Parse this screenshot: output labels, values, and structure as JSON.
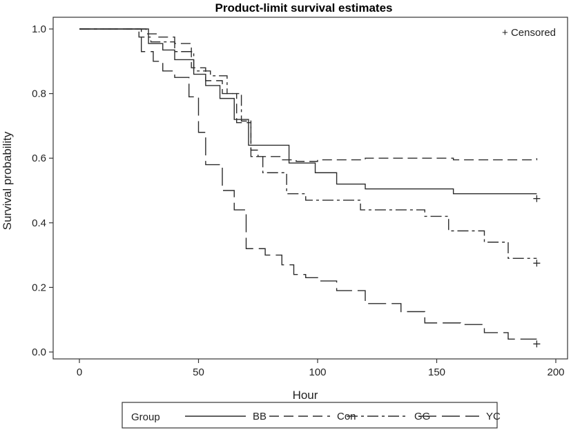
{
  "chart_data": {
    "type": "line",
    "title": "Product-limit survival estimates",
    "xlabel": "Hour",
    "ylabel": "Survival probability",
    "xlim": [
      -10,
      205
    ],
    "ylim": [
      -0.02,
      1.04
    ],
    "xticks": [
      0,
      50,
      100,
      150,
      200
    ],
    "yticks": [
      0.0,
      0.2,
      0.4,
      0.6,
      0.8,
      1.0
    ],
    "xtick_labels": [
      "0",
      "50",
      "100",
      "150",
      "200"
    ],
    "ytick_labels": [
      "0.0",
      "0.2",
      "0.4",
      "0.6",
      "0.8",
      "1.0"
    ],
    "censor_note": "+ Censored",
    "legend": {
      "title": "Group",
      "position": "bottom"
    },
    "series": [
      {
        "name": "BB",
        "dash": "solid",
        "x": [
          0,
          22,
          29,
          35,
          40,
          48,
          53,
          59,
          65,
          71,
          88,
          99,
          108,
          120,
          157,
          192
        ],
        "y": [
          1.0,
          1.0,
          0.955,
          0.935,
          0.905,
          0.86,
          0.825,
          0.785,
          0.72,
          0.64,
          0.585,
          0.555,
          0.52,
          0.505,
          0.49,
          0.49
        ],
        "censored": [
          {
            "x": 192,
            "y": 0.475
          }
        ]
      },
      {
        "name": "Con",
        "dash": "dashed",
        "x": [
          0,
          22,
          28,
          33,
          40,
          47,
          53,
          60,
          66,
          72,
          75,
          85,
          91,
          100,
          120,
          157,
          192
        ],
        "y": [
          1.0,
          1.0,
          0.985,
          0.975,
          0.955,
          0.88,
          0.84,
          0.8,
          0.71,
          0.625,
          0.605,
          0.595,
          0.59,
          0.595,
          0.6,
          0.595,
          0.6
        ],
        "censored": []
      },
      {
        "name": "GG",
        "dash": "dashdot",
        "x": [
          0,
          22,
          25,
          30,
          40,
          48,
          55,
          62,
          68,
          72,
          77,
          87,
          95,
          118,
          145,
          155,
          170,
          180,
          192
        ],
        "y": [
          1.0,
          1.0,
          0.975,
          0.96,
          0.93,
          0.87,
          0.855,
          0.8,
          0.715,
          0.605,
          0.555,
          0.49,
          0.47,
          0.44,
          0.42,
          0.375,
          0.34,
          0.29,
          0.29
        ],
        "censored": [
          {
            "x": 192,
            "y": 0.275
          }
        ]
      },
      {
        "name": "YC",
        "dash": "longdash",
        "x": [
          0,
          22,
          26,
          31,
          35,
          40,
          46,
          50,
          53,
          60,
          65,
          70,
          78,
          85,
          90,
          95,
          100,
          108,
          120,
          135,
          145,
          160,
          170,
          180,
          192
        ],
        "y": [
          1.0,
          1.0,
          0.93,
          0.9,
          0.87,
          0.85,
          0.79,
          0.68,
          0.58,
          0.5,
          0.44,
          0.32,
          0.3,
          0.27,
          0.24,
          0.23,
          0.22,
          0.19,
          0.15,
          0.125,
          0.09,
          0.085,
          0.06,
          0.04,
          0.04
        ],
        "censored": [
          {
            "x": 192,
            "y": 0.025
          }
        ]
      }
    ]
  }
}
